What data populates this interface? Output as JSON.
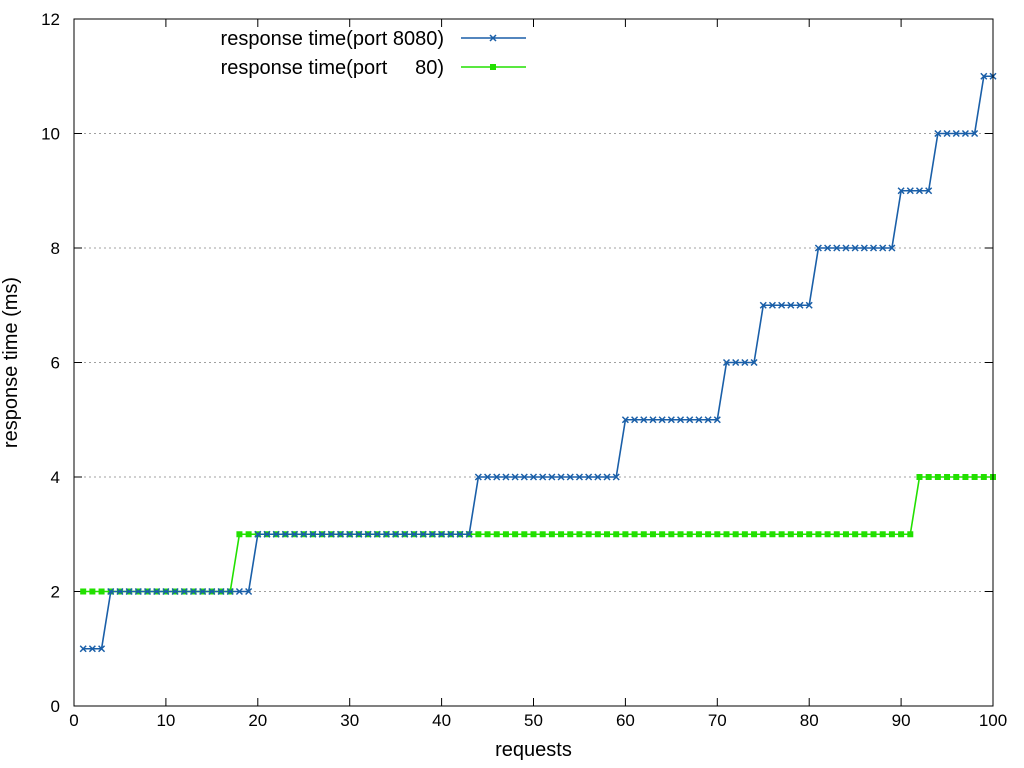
{
  "chart_data": {
    "type": "line",
    "title": "",
    "xlabel": "requests",
    "ylabel": "response time (ms)",
    "xlim": [
      0,
      100
    ],
    "ylim": [
      0,
      12
    ],
    "x_ticks": [
      0,
      10,
      20,
      30,
      40,
      50,
      60,
      70,
      80,
      90,
      100
    ],
    "y_ticks": [
      0,
      2,
      4,
      6,
      8,
      10,
      12
    ],
    "grid": {
      "y": true,
      "x": false,
      "style": "dotted"
    },
    "legend_position": "top-left",
    "series": [
      {
        "name": "response time(port 8080)",
        "color": "#1a5fa8",
        "marker": "x",
        "values": [
          1,
          1,
          1,
          2,
          2,
          2,
          2,
          2,
          2,
          2,
          2,
          2,
          2,
          2,
          2,
          2,
          2,
          2,
          2,
          3,
          3,
          3,
          3,
          3,
          3,
          3,
          3,
          3,
          3,
          3,
          3,
          3,
          3,
          3,
          3,
          3,
          3,
          3,
          3,
          3,
          3,
          3,
          3,
          4,
          4,
          4,
          4,
          4,
          4,
          4,
          4,
          4,
          4,
          4,
          4,
          4,
          4,
          4,
          4,
          5,
          5,
          5,
          5,
          5,
          5,
          5,
          5,
          5,
          5,
          5,
          6,
          6,
          6,
          6,
          7,
          7,
          7,
          7,
          7,
          7,
          8,
          8,
          8,
          8,
          8,
          8,
          8,
          8,
          8,
          9,
          9,
          9,
          9,
          10,
          10,
          10,
          10,
          10,
          11,
          11
        ]
      },
      {
        "name": "response time(port     80)",
        "color": "#22e000",
        "marker": "square",
        "values": [
          2,
          2,
          2,
          2,
          2,
          2,
          2,
          2,
          2,
          2,
          2,
          2,
          2,
          2,
          2,
          2,
          2,
          3,
          3,
          3,
          3,
          3,
          3,
          3,
          3,
          3,
          3,
          3,
          3,
          3,
          3,
          3,
          3,
          3,
          3,
          3,
          3,
          3,
          3,
          3,
          3,
          3,
          3,
          3,
          3,
          3,
          3,
          3,
          3,
          3,
          3,
          3,
          3,
          3,
          3,
          3,
          3,
          3,
          3,
          3,
          3,
          3,
          3,
          3,
          3,
          3,
          3,
          3,
          3,
          3,
          3,
          3,
          3,
          3,
          3,
          3,
          3,
          3,
          3,
          3,
          3,
          3,
          3,
          3,
          3,
          3,
          3,
          3,
          3,
          3,
          3,
          4,
          4,
          4,
          4,
          4,
          4,
          4,
          4,
          4
        ]
      }
    ]
  }
}
